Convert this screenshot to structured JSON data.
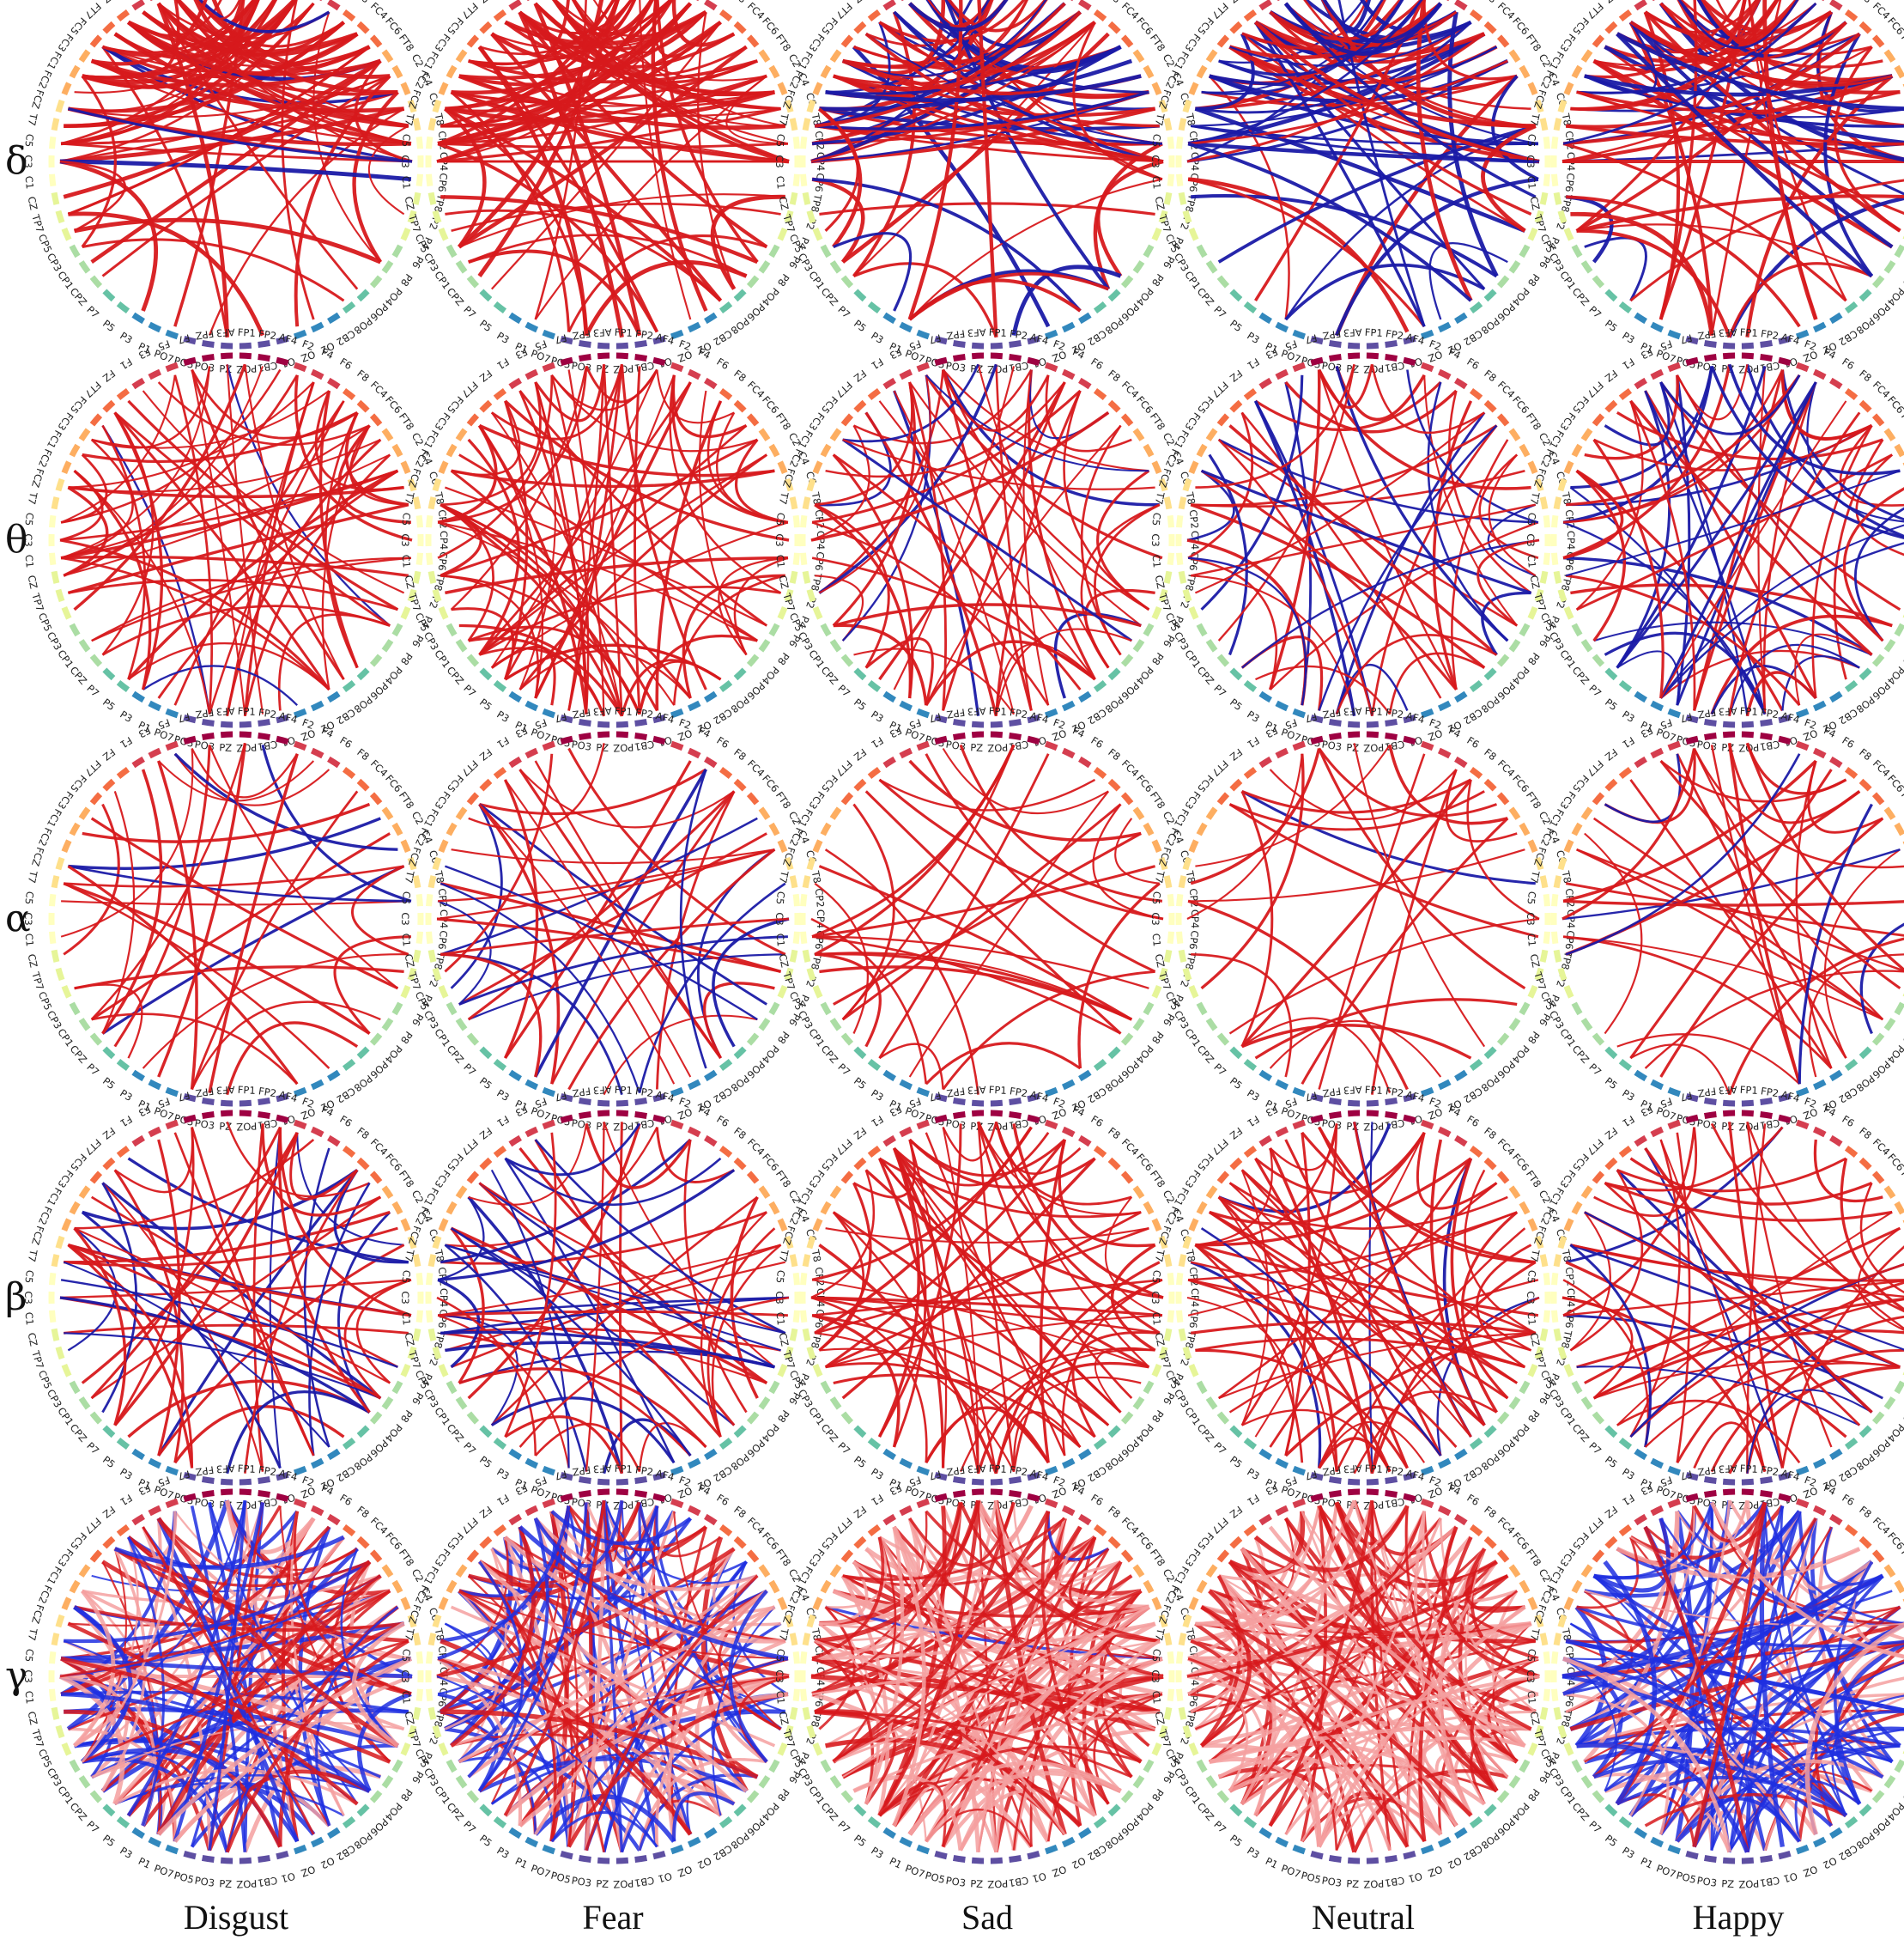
{
  "bands": [
    {
      "symbol": "δ"
    },
    {
      "symbol": "θ"
    },
    {
      "symbol": "α"
    },
    {
      "symbol": "β"
    },
    {
      "symbol": "γ"
    }
  ],
  "emotions": [
    "Disgust",
    "Fear",
    "Sad",
    "Neutral",
    "Happy"
  ],
  "electrodes": [
    "FP1",
    "FPZ",
    "FP2",
    "AF3",
    "AF4",
    "F7",
    "F5",
    "F3",
    "F1",
    "FZ",
    "F2",
    "F4",
    "F6",
    "F8",
    "FT7",
    "FC5",
    "FC3",
    "FC1",
    "FCZ",
    "FC2",
    "FC4",
    "FC6",
    "FT8",
    "T7",
    "C5",
    "C3",
    "C1",
    "CZ",
    "C2",
    "C4",
    "C6",
    "T8",
    "TP7",
    "CP5",
    "CP3",
    "CP1",
    "CPZ",
    "CP2",
    "CP4",
    "CP6",
    "TP8",
    "P7",
    "P5",
    "P3",
    "P1",
    "PZ",
    "P2",
    "P4",
    "P6",
    "P8",
    "PO7",
    "PO5",
    "PO3",
    "POZ",
    "PO4",
    "PO6",
    "PO8",
    "CB1",
    "O1",
    "OZ",
    "O2",
    "CB2"
  ],
  "electrode_ring_order": [
    "FP1",
    "FP2",
    "AF4",
    "F2",
    "F4",
    "F6",
    "F8",
    "FC4",
    "FC6",
    "FT8",
    "C2",
    "C4",
    "C6",
    "T8",
    "CP2",
    "CP4",
    "CP6",
    "TP8",
    "P2",
    "P4",
    "P6",
    "P8",
    "PO4",
    "PO6",
    "PO8",
    "CB2",
    "O2",
    "OZ",
    "O1",
    "CB1",
    "POZ",
    "PZ",
    "PO3",
    "PO5",
    "PO7",
    "P1",
    "P3",
    "P5",
    "P7",
    "CPZ",
    "CP1",
    "CP3",
    "CP5",
    "TP7",
    "CZ",
    "C1",
    "C3",
    "C5",
    "T7",
    "FCZ",
    "FC2",
    "FC1",
    "FC3",
    "FC5",
    "FT7",
    "FZ",
    "F1",
    "F3",
    "F5",
    "F7",
    "FPZ",
    "AF3"
  ],
  "colors": {
    "positive_connection": "#d7191c",
    "negative_connection": "#1a1aa6",
    "gamma_positive_light": "#f4a0a0",
    "gamma_negative": "#1f2fe0",
    "ring_colormap": [
      "#9e0142",
      "#d53e4f",
      "#f46d43",
      "#fdae61",
      "#fee08b",
      "#ffffbf",
      "#e6f598",
      "#abdda4",
      "#66c2a5",
      "#3288bd",
      "#5e4fa2"
    ]
  }
}
